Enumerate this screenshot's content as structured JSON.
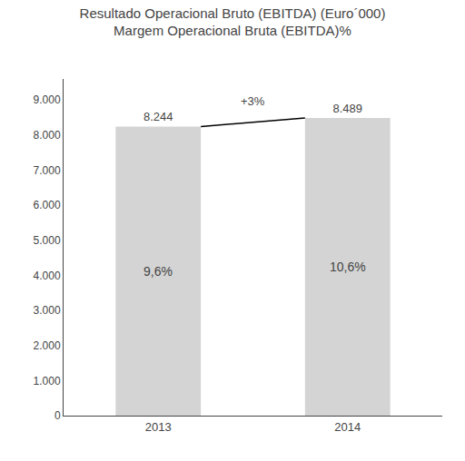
{
  "chart_data": {
    "type": "bar",
    "title": "Resultado Operacional Bruto (EBITDA) (Euro´000)",
    "subtitle": "Margem Operacional Bruta (EBITDA)%",
    "categories": [
      "2013",
      "2014"
    ],
    "values": [
      8244,
      8489
    ],
    "value_labels": [
      "8.244",
      "8.489"
    ],
    "data_labels": true,
    "color": "#d4d4d4",
    "annotations": [
      {
        "text": "9,6%",
        "category": "2013"
      },
      {
        "text": "10,6%",
        "category": "2014"
      },
      {
        "text": "+3%"
      }
    ],
    "ylim": [
      0,
      9600
    ],
    "yticks": [
      0,
      {
        "value": 1000,
        "label": "1.000"
      },
      {
        "value": 2000,
        "label": "2.000"
      },
      {
        "value": 3000,
        "label": "3.000"
      },
      {
        "value": 4000,
        "label": "4.000"
      },
      {
        "value": 5000,
        "label": "5.000"
      },
      {
        "value": 6000,
        "label": "6.000"
      },
      {
        "value": 7000,
        "label": "7.000"
      },
      {
        "value": 8000,
        "label": "8.000"
      },
      {
        "value": 9000,
        "label": "9.000"
      }
    ],
    "grid": false
  }
}
